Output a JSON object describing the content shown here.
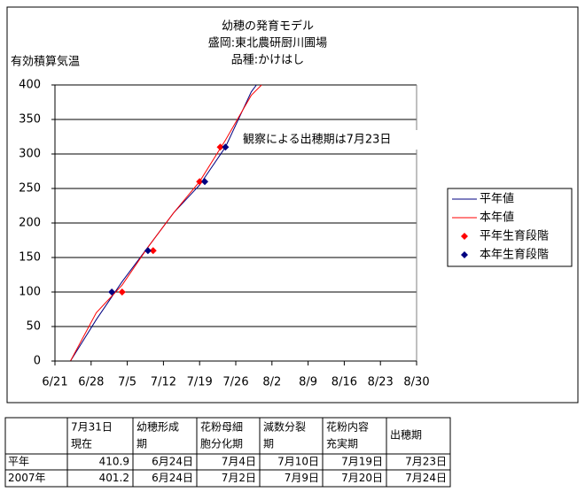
{
  "chart_data": {
    "type": "line",
    "title": "幼穂の発育モデル",
    "subtitle": [
      "盛岡:東北農研厨川圃場",
      "品種:かけはし"
    ],
    "y_label": "有効積算気温",
    "annotation": "観察による出穂期は7月23日",
    "xlim": [
      172,
      242
    ],
    "xticks": [
      {
        "value": 172,
        "label": "6/21"
      },
      {
        "value": 179,
        "label": "6/28"
      },
      {
        "value": 186,
        "label": "7/5"
      },
      {
        "value": 193,
        "label": "7/12"
      },
      {
        "value": 200,
        "label": "7/19"
      },
      {
        "value": 207,
        "label": "7/26"
      },
      {
        "value": 214,
        "label": "8/2"
      },
      {
        "value": 221,
        "label": "8/9"
      },
      {
        "value": 228,
        "label": "8/16"
      },
      {
        "value": 235,
        "label": "8/23"
      },
      {
        "value": 242,
        "label": "8/30"
      }
    ],
    "ylim": [
      0,
      400
    ],
    "yticks": [
      0,
      50,
      100,
      150,
      200,
      250,
      300,
      350,
      400
    ],
    "grid": true,
    "legend": "right",
    "series": [
      {
        "name": "平年値",
        "kind": "line",
        "color": "#000080",
        "x": [
          175,
          180,
          185,
          190,
          195,
          200,
          205,
          210,
          211
        ],
        "values": [
          0,
          60,
          115,
          165,
          215,
          255,
          310,
          390,
          400
        ]
      },
      {
        "name": "本年値",
        "kind": "line",
        "color": "#ff0000",
        "x": [
          175,
          180,
          185,
          190,
          195,
          200,
          205,
          210,
          212
        ],
        "values": [
          0,
          70,
          110,
          165,
          215,
          260,
          320,
          385,
          400
        ]
      },
      {
        "name": "平年生育段階",
        "kind": "marker",
        "color": "#ff0000",
        "x": [
          185,
          191,
          200,
          204
        ],
        "values": [
          100,
          160,
          260,
          310
        ]
      },
      {
        "name": "本年生育段階",
        "kind": "marker",
        "color": "#000080",
        "x": [
          183,
          190,
          201,
          205
        ],
        "values": [
          100,
          160,
          260,
          310
        ]
      }
    ]
  },
  "table": {
    "header": [
      [],
      [
        "7月31日",
        "現在"
      ],
      [
        "幼穂形成",
        "期"
      ],
      [
        "花粉母細",
        "胞分化期"
      ],
      [
        "減数分裂",
        "期"
      ],
      [
        "花粉内容",
        "充実期"
      ],
      [
        "出穂期"
      ]
    ],
    "rows": [
      [
        "平年",
        "410.9",
        "6月24日",
        "7月4日",
        "7月10日",
        "7月19日",
        "7月23日"
      ],
      [
        "2007年",
        "401.2",
        "6月24日",
        "7月2日",
        "7月9日",
        "7月20日",
        "7月24日"
      ]
    ]
  }
}
